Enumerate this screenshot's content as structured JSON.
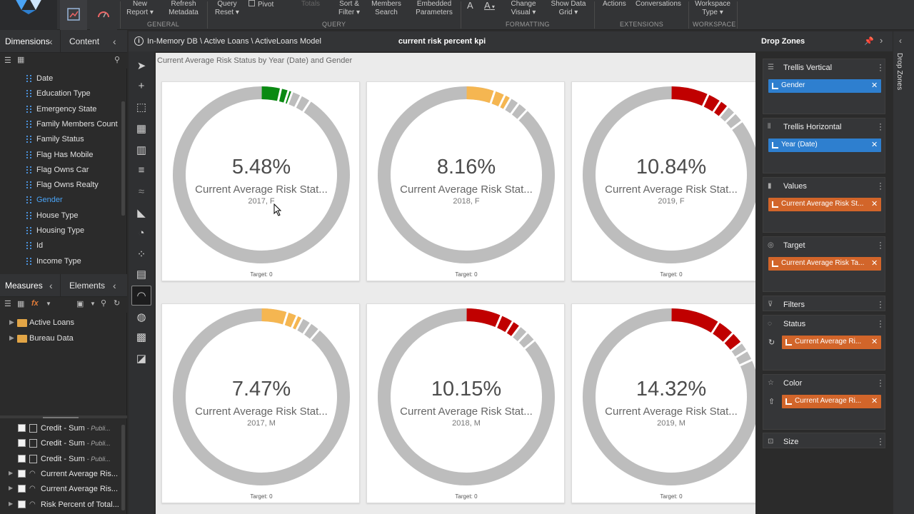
{
  "ribbon": {
    "buttons": [
      {
        "id": "new-report",
        "label": "New\nReport ▾"
      },
      {
        "id": "refresh-metadata",
        "label": "Refresh\nMetadata"
      },
      {
        "id": "query-reset",
        "label": "Query\nReset ▾"
      },
      {
        "id": "pivot",
        "label": "Pivot"
      },
      {
        "id": "totals",
        "label": "Totals"
      },
      {
        "id": "sort-filter",
        "label": "Sort &\nFilter ▾"
      },
      {
        "id": "members-search",
        "label": "Members\nSearch"
      },
      {
        "id": "embedded-parameters",
        "label": "Embedded\nParameters"
      },
      {
        "id": "change-visual",
        "label": "Change\nVisual ▾"
      },
      {
        "id": "show-data-grid",
        "label": "Show Data\nGrid ▾"
      },
      {
        "id": "actions",
        "label": "Actions"
      },
      {
        "id": "conversations",
        "label": "Conversations"
      },
      {
        "id": "workspace-type",
        "label": "Workspace\nType ▾"
      }
    ],
    "groups": {
      "general": "GENERAL",
      "query": "QUERY",
      "formatting": "FORMATTING",
      "extensions": "EXTENSIONS",
      "workspace": "WORKSPACE"
    },
    "font_a": "A"
  },
  "left": {
    "tab_dimensions": "Dimensions",
    "tab_content": "Content",
    "dimensions": [
      {
        "label": "Date"
      },
      {
        "label": "Education Type"
      },
      {
        "label": "Emergency State"
      },
      {
        "label": "Family Members Count"
      },
      {
        "label": "Family Status"
      },
      {
        "label": "Flag Has Mobile"
      },
      {
        "label": "Flag Owns Car"
      },
      {
        "label": "Flag Owns Realty"
      },
      {
        "label": "Gender",
        "selected": true
      },
      {
        "label": "House Type"
      },
      {
        "label": "Housing Type"
      },
      {
        "label": "Id"
      },
      {
        "label": "Income Type"
      }
    ],
    "tab_measures": "Measures",
    "tab_elements": "Elements",
    "folders": [
      "Active Loans",
      "Bureau Data"
    ],
    "measures": [
      {
        "label": "Credit - Sum",
        "sub": "- Publi..."
      },
      {
        "label": "Credit - Sum",
        "sub": "- Publi..."
      },
      {
        "label": "Credit - Sum",
        "sub": "- Publi..."
      },
      {
        "label": "Current Average Ris...",
        "sub": ""
      },
      {
        "label": "Current Average Ris...",
        "sub": ""
      },
      {
        "label": "Risk Percent of Total...",
        "sub": ""
      }
    ]
  },
  "crumb": {
    "path": "In-Memory DB \\ Active Loans \\ ActiveLoans Model",
    "title": "current risk percent kpi"
  },
  "canvas": {
    "title": "Current Average Risk Status by Year (Date) and Gender",
    "measure_label": "Current Average Risk Stat...",
    "target_label": "Target: 0"
  },
  "tiles": [
    {
      "value": "5.48%",
      "category": "2017, F",
      "pct": 5.48,
      "color": "#0a8a12"
    },
    {
      "value": "8.16%",
      "category": "2018, F",
      "pct": 8.16,
      "color": "#f5b651"
    },
    {
      "value": "10.84%",
      "category": "2019, F",
      "pct": 10.84,
      "color": "#c00000"
    },
    {
      "value": "7.47%",
      "category": "2017, M",
      "pct": 7.47,
      "color": "#f5b651"
    },
    {
      "value": "10.15%",
      "category": "2018, M",
      "pct": 10.15,
      "color": "#c00000"
    },
    {
      "value": "14.32%",
      "category": "2019, M",
      "pct": 14.32,
      "color": "#c00000"
    }
  ],
  "dropzones": {
    "header": "Drop Zones",
    "strip": "Drop Zones",
    "zones": [
      {
        "title": "Trellis Vertical",
        "chip": "Gender",
        "chip_color": "blue"
      },
      {
        "title": "Trellis Horizontal",
        "chip": "Year (Date)",
        "chip_color": "blue"
      },
      {
        "title": "Values",
        "chip": "Current Average Risk St...",
        "chip_color": "orange"
      },
      {
        "title": "Target",
        "chip": "Current Average Risk Ta...",
        "chip_color": "orange"
      },
      {
        "title": "Filters",
        "chip": "",
        "chip_color": ""
      },
      {
        "title": "Status",
        "chip": "Current Average Ri...",
        "chip_color": "orange"
      },
      {
        "title": "Color",
        "chip": "Current Average Ri...",
        "chip_color": "orange"
      },
      {
        "title": "Size",
        "chip": "",
        "chip_color": ""
      }
    ]
  },
  "colors": {
    "accent_blue": "#2e7fcf",
    "accent_orange": "#d2652a",
    "selected_text": "#4aa3f5",
    "ring_gray": "#bdbdbd"
  }
}
